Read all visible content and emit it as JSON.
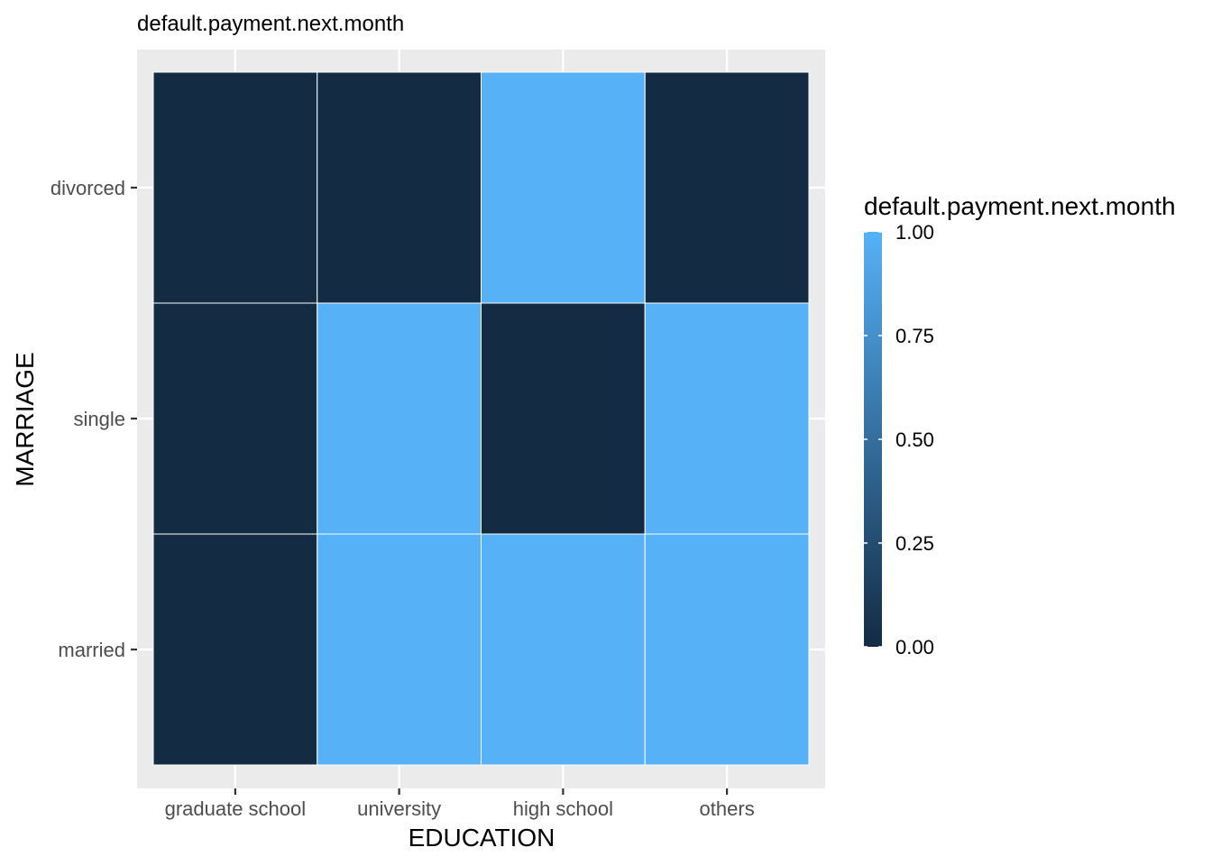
{
  "chart_data": {
    "type": "heatmap",
    "title": "default.payment.next.month",
    "xlabel": "EDUCATION",
    "ylabel": "MARRIAGE",
    "x_categories": [
      "graduate school",
      "university",
      "high school",
      "others"
    ],
    "y_categories": [
      "married",
      "single",
      "divorced"
    ],
    "values": [
      [
        0,
        1,
        1,
        1
      ],
      [
        0,
        1,
        0,
        1
      ],
      [
        0,
        0,
        1,
        0
      ]
    ],
    "fill_range": [
      0,
      1
    ],
    "legend": {
      "title": "default.payment.next.month",
      "breaks": [
        "0.00",
        "0.25",
        "0.50",
        "0.75",
        "1.00"
      ],
      "break_values": [
        0,
        0.25,
        0.5,
        0.75,
        1
      ],
      "low_color": "#132B43",
      "high_color": "#56B1F7",
      "placement": "right"
    },
    "panel_background": "#ebebeb",
    "grid": true
  }
}
